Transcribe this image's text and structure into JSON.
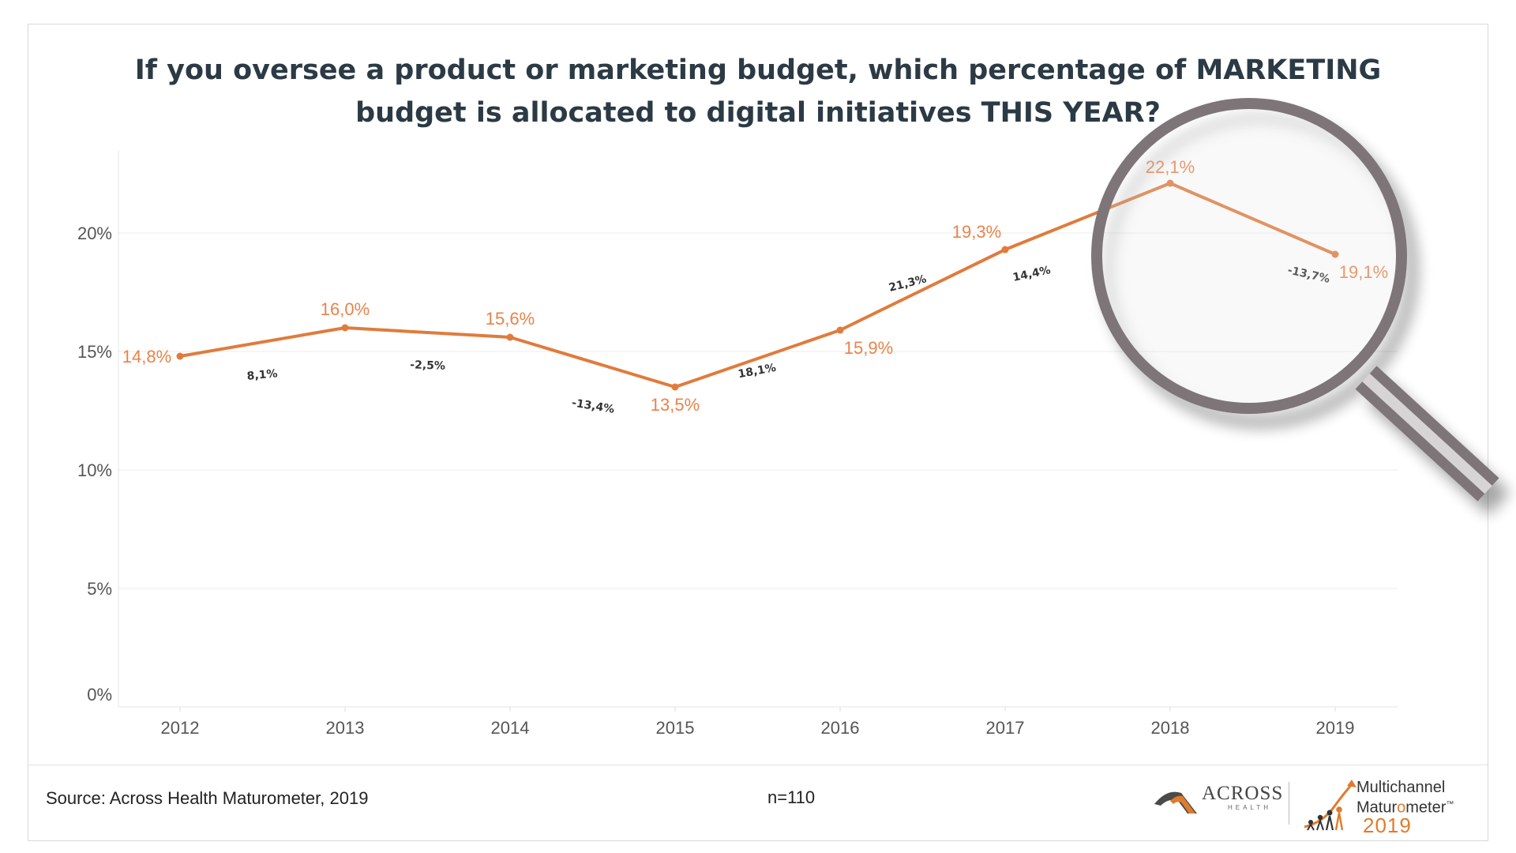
{
  "title_lines": [
    "If you oversee a product or marketing budget, which percentage of MARKETING",
    "budget is allocated to digital initiatives THIS YEAR?"
  ],
  "chart_data": {
    "type": "line",
    "title": "If you oversee a product or marketing budget, which percentage of MARKETING budget is allocated to digital initiatives THIS YEAR?",
    "categories": [
      "2012",
      "2013",
      "2014",
      "2015",
      "2016",
      "2017",
      "2018",
      "2019"
    ],
    "series": [
      {
        "values": [
          14.8,
          16.0,
          15.6,
          13.5,
          15.9,
          19.3,
          22.1,
          19.1
        ],
        "labels": [
          "14,8%",
          "16,0%",
          "15,6%",
          "13,5%",
          "15,9%",
          "19,3%",
          "22,1%",
          "19,1%"
        ],
        "color": "#e07b3c"
      }
    ],
    "growth_labels": [
      "8,1%",
      "-2,5%",
      "-13,4%",
      "18,1%",
      "21,3%",
      "14,4%",
      "-13,7%"
    ],
    "y_ticks": [
      0,
      5,
      10,
      15,
      20
    ],
    "y_tick_labels": [
      "0%",
      "5%",
      "10%",
      "15%",
      "20%"
    ],
    "ylim": [
      0,
      23.5
    ],
    "grid": true,
    "xlabel": "",
    "ylabel": "",
    "annotation": "magnifying glass over 2018"
  },
  "footer": {
    "source": "Source: Across Health Maturometer, 2019",
    "n": "n=110"
  },
  "logos": {
    "across_word": "ACROSS",
    "across_sub": "HEALTH",
    "maturometer_line1": "Multichannel",
    "maturometer_line2_a": "Matur",
    "maturometer_line2_b": "o",
    "maturometer_line2_c": "meter",
    "maturometer_tm": "™",
    "maturometer_year": "2019"
  },
  "colors": {
    "line": "#e07b3c",
    "label": "#e8834a",
    "growth_label": "#333333",
    "title": "#2b3a44"
  }
}
